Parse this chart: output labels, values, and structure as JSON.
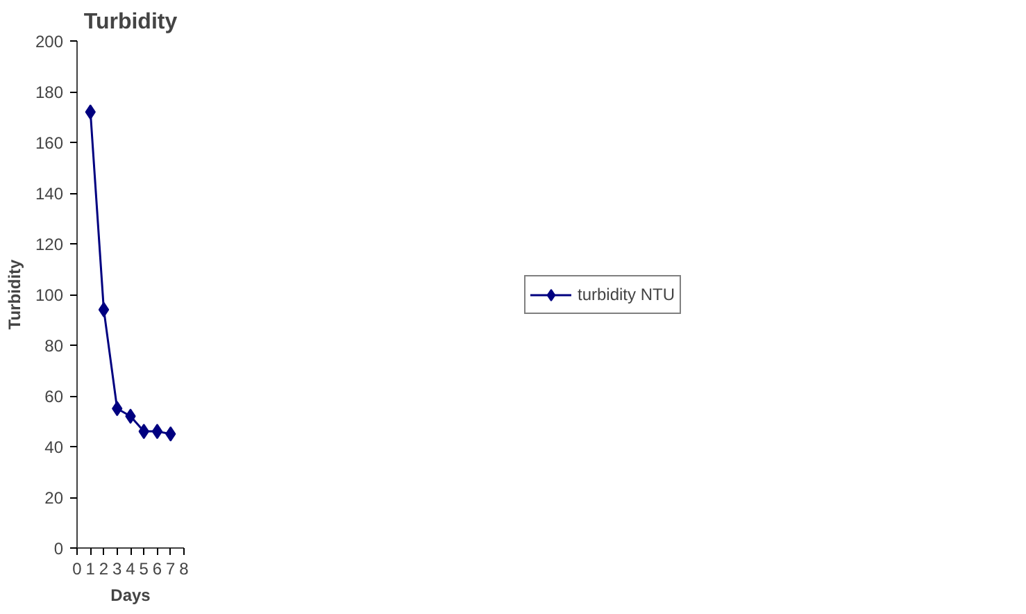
{
  "chart_data": {
    "type": "line",
    "title": "Turbidity",
    "xlabel": "Days",
    "ylabel": "Turbidity",
    "x": [
      1,
      2,
      3,
      4,
      5,
      6,
      7
    ],
    "series": [
      {
        "name": "turbidity NTU",
        "color": "#000080",
        "values": [
          172,
          94,
          55,
          52,
          46,
          46,
          45
        ]
      }
    ],
    "xlim": [
      0,
      8
    ],
    "xticks": [
      0,
      1,
      2,
      3,
      4,
      5,
      6,
      7,
      8
    ],
    "ylim": [
      0,
      200
    ],
    "yticks": [
      0,
      20,
      40,
      60,
      80,
      100,
      120,
      140,
      160,
      180,
      200
    ],
    "grid": false,
    "legend": "right",
    "marker": "diamond",
    "line_style": "solid"
  }
}
